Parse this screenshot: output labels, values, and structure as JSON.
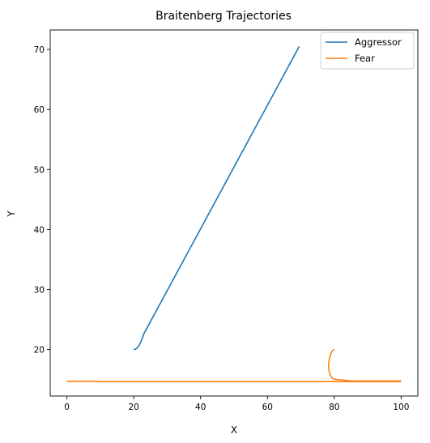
{
  "chart_data": {
    "type": "line",
    "title": "Braitenberg Trajectories",
    "xlabel": "X",
    "ylabel": "Y",
    "xlim": [
      -5,
      105
    ],
    "ylim": [
      12.25,
      73.25
    ],
    "xticks": [
      0,
      20,
      40,
      60,
      80,
      100
    ],
    "yticks": [
      20,
      30,
      40,
      50,
      60,
      70
    ],
    "grid": false,
    "legend": "top-right",
    "series": [
      {
        "name": "Aggressor",
        "color": "#1f77b4",
        "points": [
          [
            20,
            20
          ],
          [
            20.5,
            20.05
          ],
          [
            21,
            20.25
          ],
          [
            21.6,
            20.7
          ],
          [
            22.3,
            21.5
          ],
          [
            23,
            22.6
          ],
          [
            69.5,
            70.5
          ]
        ]
      },
      {
        "name": "Fear",
        "color": "#ff7f0e",
        "points": [
          [
            0,
            14.7
          ],
          [
            10,
            14.7
          ],
          [
            10,
            14.65
          ],
          [
            99.8,
            14.65
          ],
          [
            99.8,
            14.75
          ],
          [
            85,
            14.75
          ],
          [
            83,
            14.9
          ],
          [
            81,
            15.0
          ],
          [
            80,
            15.05
          ],
          [
            79.4,
            15.2
          ],
          [
            78.8,
            15.7
          ],
          [
            78.4,
            16.5
          ],
          [
            78.3,
            17.5
          ],
          [
            78.5,
            18.4
          ],
          [
            78.9,
            19.2
          ],
          [
            79.4,
            19.8
          ],
          [
            80,
            20.0
          ]
        ]
      }
    ]
  }
}
